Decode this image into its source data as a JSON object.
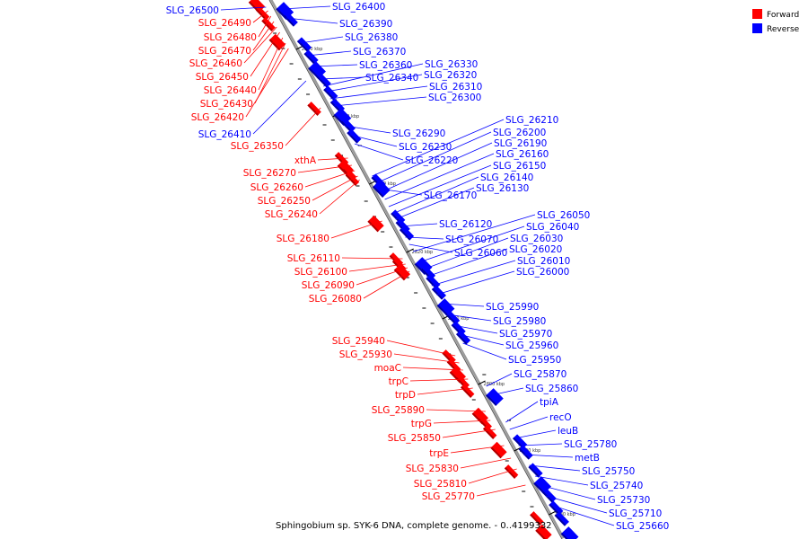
{
  "legend": [
    {
      "name": "Forward",
      "color": "#ff0000"
    },
    {
      "name": "Reverse",
      "color": "#0000ff"
    }
  ],
  "colors": {
    "forward": "#ff0000",
    "reverse": "#0000ff",
    "axis": "#888888"
  },
  "caption": "Sphingobium sp. SYK-6 DNA, complete genome. - 0..4199332",
  "ticks": [
    "2850 kbp",
    "2840 kbp",
    "2830 kbp",
    "2820 kbp",
    "2810 kbp",
    "2800 kbp",
    "2790 kbp",
    "2780 kbp"
  ],
  "forward_labels": [
    "SLG_26490",
    "SLG_26480",
    "SLG_26470",
    "SLG_26460",
    "SLG_26450",
    "SLG_26440",
    "SLG_26430",
    "SLG_26420",
    "SLG_26350",
    "xthA",
    "SLG_26270",
    "SLG_26260",
    "SLG_26250",
    "SLG_26240",
    "SLG_26180",
    "SLG_26110",
    "SLG_26100",
    "SLG_26090",
    "SLG_26080",
    "SLG_25940",
    "SLG_25930",
    "moaC",
    "trpC",
    "trpD",
    "SLG_25890",
    "trpG",
    "SLG_25850",
    "trpE",
    "SLG_25830",
    "SLG_25810",
    "SLG_25770"
  ],
  "reverse_left_labels": [
    "SLG_26500",
    "SLG_26410"
  ],
  "reverse_labels": [
    "SLG_26400",
    "SLG_26390",
    "SLG_26380",
    "SLG_26370",
    "SLG_26360",
    "SLG_26340",
    "SLG_26330",
    "SLG_26320",
    "SLG_26310",
    "SLG_26300",
    "SLG_26290",
    "SLG_26230",
    "SLG_26220",
    "SLG_26170",
    "SLG_26210",
    "SLG_26200",
    "SLG_26190",
    "SLG_26160",
    "SLG_26150",
    "SLG_26140",
    "SLG_26130",
    "SLG_26120",
    "SLG_26070",
    "SLG_26060",
    "SLG_26050",
    "SLG_26040",
    "SLG_26030",
    "SLG_26020",
    "SLG_26010",
    "SLG_26000",
    "SLG_25990",
    "SLG_25980",
    "SLG_25970",
    "SLG_25960",
    "SLG_25950",
    "SLG_25870",
    "SLG_25860",
    "tpiA",
    "recO",
    "leuB",
    "SLG_25780",
    "metB",
    "SLG_25750",
    "SLG_25740",
    "SLG_25730",
    "SLG_25710",
    "SLG_25660"
  ]
}
